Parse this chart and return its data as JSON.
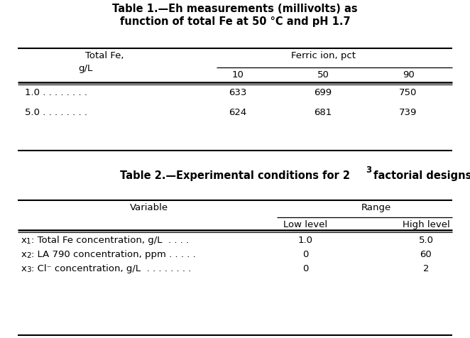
{
  "table1": {
    "title_line1": "Table 1.—Eh measurements (millivolts) as",
    "title_line2": "function of total Fe at 50 °C and pH 1.7",
    "col_header_left1": "Total Fe,",
    "col_header_left2": "g/L",
    "col_header_group": "Ferric ion, pct",
    "col_subheaders": [
      "10",
      "50",
      "90"
    ],
    "rows": [
      [
        "1.0 . . . . . . . .",
        "633",
        "699",
        "750"
      ],
      [
        "5.0 . . . . . . . .",
        "624",
        "681",
        "739"
      ]
    ]
  },
  "table2": {
    "title_base": "Table 2.—Experimental conditions for 2",
    "title_sup": "3",
    "title_end": " factorial designs",
    "col_header_var": "Variable",
    "col_header_range": "Range",
    "subheaders": [
      "Low level",
      "High level"
    ],
    "rows": [
      [
        "x",
        "1",
        "Total Fe concentration, g/L  . . . .",
        "1.0",
        "5.0"
      ],
      [
        "x",
        "2",
        "LA 790 concentration, ppm . . . . .",
        "0",
        "60"
      ],
      [
        "x",
        "3",
        "Cl⁻ concentration, g/L  . . . . . . . .",
        "0",
        "2"
      ]
    ]
  },
  "bg_color": "#ffffff",
  "text_color": "#000000",
  "fs": 9.5,
  "title_fs": 10.5
}
